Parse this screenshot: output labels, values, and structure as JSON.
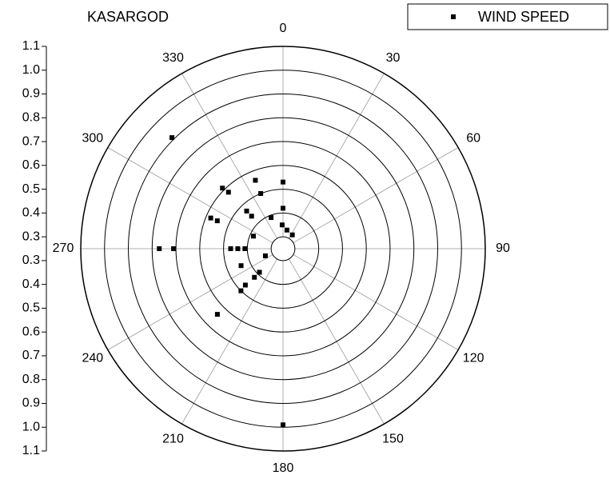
{
  "chart_data": {
    "type": "polar",
    "title": "KASARGOD",
    "series": [
      {
        "name": "WIND SPEED",
        "color": "#000000",
        "theta": [
          315,
          0,
          0,
          180,
          270,
          270,
          270,
          270,
          270,
          338,
          338,
          315,
          316,
          293,
          293,
          316,
          316,
          339,
          358,
          12,
          34,
          293,
          248,
          248,
          225,
          225,
          226,
          225,
          225
        ],
        "values": [
          0.91,
          0.53,
          0.42,
          0.99,
          0.77,
          0.71,
          0.47,
          0.44,
          0.41,
          0.56,
          0.5,
          0.61,
          0.58,
          0.58,
          0.55,
          0.47,
          0.44,
          0.39,
          0.35,
          0.33,
          0.32,
          0.385,
          0.33,
          0.44,
          0.39,
          0.42,
          0.47,
          0.5,
          0.64
        ]
      }
    ],
    "thetaticks": [
      0,
      30,
      60,
      90,
      120,
      150,
      180,
      210,
      240,
      270,
      300,
      330
    ],
    "ylim": [
      0.25,
      1.1
    ],
    "yticks": [
      0.3,
      0.4,
      0.5,
      0.6,
      0.7,
      0.8,
      0.9,
      {
        "value": 1,
        "label": "1.0"
      },
      1.1
    ],
    "grid": true,
    "legend": "top-right"
  }
}
